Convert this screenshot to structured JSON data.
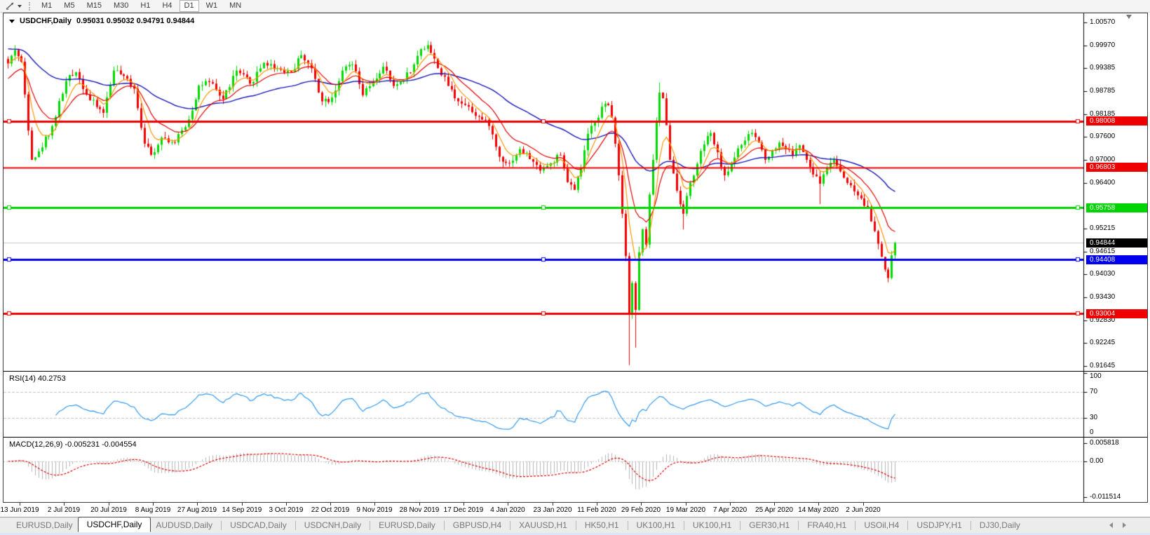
{
  "toolbar": {
    "timeframes": [
      "M1",
      "M5",
      "M15",
      "M30",
      "H1",
      "H4",
      "D1",
      "W1",
      "MN"
    ],
    "active_timeframe": "D1"
  },
  "chart": {
    "symbol": "USDCHF,Daily",
    "ohlc": "0.95031 0.95032 0.94791 0.94844",
    "price_axis_ticks": [
      "1.00570",
      "0.99970",
      "0.99385",
      "0.98785",
      "0.98185",
      "0.97600",
      "0.97000",
      "0.96400",
      "0.95215",
      "0.94615",
      "0.94030",
      "0.93430",
      "0.92830",
      "0.92245",
      "0.91645"
    ],
    "axis_range": {
      "top": 1.0057,
      "bottom": 0.91645
    },
    "hlines": [
      {
        "price": 0.98008,
        "label": "0.98008",
        "color": "#ee0000",
        "thickness": 3,
        "selected": true
      },
      {
        "price": 0.96803,
        "label": "0.96803",
        "color": "#ee0000",
        "thickness": 2,
        "selected": false
      },
      {
        "price": 0.95758,
        "label": "0.95758",
        "color": "#00d400",
        "thickness": 3,
        "selected": true
      },
      {
        "price": 0.94408,
        "label": "0.94408",
        "color": "#0000ee",
        "thickness": 3,
        "selected": true
      },
      {
        "price": 0.93004,
        "label": "0.93004",
        "color": "#ee0000",
        "thickness": 3,
        "selected": true
      }
    ],
    "current_price": {
      "price": 0.94844,
      "label": "0.94844",
      "tag_color": "#000000",
      "line_color": "#c8c8c8"
    },
    "candles": {
      "count": 261,
      "up_color": "#00dc00",
      "down_color": "#f50000",
      "anchors": [
        [
          0,
          0.995
        ],
        [
          2,
          0.9985
        ],
        [
          4,
          0.9955
        ],
        [
          7,
          0.97
        ],
        [
          9,
          0.9722
        ],
        [
          13,
          0.9788
        ],
        [
          17,
          0.9905
        ],
        [
          20,
          0.9928
        ],
        [
          24,
          0.9855
        ],
        [
          28,
          0.9822
        ],
        [
          31,
          0.9932
        ],
        [
          34,
          0.9918
        ],
        [
          37,
          0.9885
        ],
        [
          40,
          0.9742
        ],
        [
          42,
          0.9713
        ],
        [
          45,
          0.9758
        ],
        [
          49,
          0.9745
        ],
        [
          53,
          0.9805
        ],
        [
          56,
          0.9893
        ],
        [
          59,
          0.9902
        ],
        [
          63,
          0.9858
        ],
        [
          67,
          0.9932
        ],
        [
          71,
          0.9898
        ],
        [
          75,
          0.9952
        ],
        [
          79,
          0.9938
        ],
        [
          83,
          0.9928
        ],
        [
          86,
          0.9972
        ],
        [
          89,
          0.9938
        ],
        [
          92,
          0.9852
        ],
        [
          95,
          0.9862
        ],
        [
          98,
          0.9932
        ],
        [
          101,
          0.9948
        ],
        [
          104,
          0.9868
        ],
        [
          107,
          0.9902
        ],
        [
          110,
          0.9942
        ],
        [
          113,
          0.9892
        ],
        [
          116,
          0.9908
        ],
        [
          119,
          0.9948
        ],
        [
          121,
          0.9988
        ],
        [
          123,
          0.9998
        ],
        [
          126,
          0.9938
        ],
        [
          129,
          0.9892
        ],
        [
          132,
          0.9852
        ],
        [
          135,
          0.9838
        ],
        [
          138,
          0.9812
        ],
        [
          141,
          0.9788
        ],
        [
          144,
          0.9708
        ],
        [
          147,
          0.9692
        ],
        [
          150,
          0.9728
        ],
        [
          153,
          0.9702
        ],
        [
          156,
          0.9672
        ],
        [
          159,
          0.9692
        ],
        [
          162,
          0.9712
        ],
        [
          164,
          0.9642
        ],
        [
          166,
          0.9622
        ],
        [
          168,
          0.9678
        ],
        [
          170,
          0.9768
        ],
        [
          172,
          0.9798
        ],
        [
          174,
          0.9838
        ],
        [
          176,
          0.9842
        ],
        [
          177,
          0.981
        ],
        [
          178,
          0.9742
        ],
        [
          179,
          0.966
        ],
        [
          180,
          0.956
        ],
        [
          181,
          0.945
        ],
        [
          182,
          0.93
        ],
        [
          183,
          0.938
        ],
        [
          184,
          0.931
        ],
        [
          185,
          0.946
        ],
        [
          186,
          0.952
        ],
        [
          187,
          0.948
        ],
        [
          188,
          0.961
        ],
        [
          189,
          0.97
        ],
        [
          190,
          0.98
        ],
        [
          191,
          0.9875
        ],
        [
          192,
          0.986
        ],
        [
          193,
          0.979
        ],
        [
          194,
          0.97
        ],
        [
          196,
          0.962
        ],
        [
          198,
          0.956
        ],
        [
          200,
          0.964
        ],
        [
          202,
          0.969
        ],
        [
          204,
          0.974
        ],
        [
          206,
          0.977
        ],
        [
          208,
          0.972
        ],
        [
          210,
          0.966
        ],
        [
          212,
          0.969
        ],
        [
          214,
          0.973
        ],
        [
          216,
          0.975
        ],
        [
          218,
          0.977
        ],
        [
          220,
          0.9745
        ],
        [
          222,
          0.97
        ],
        [
          224,
          0.9725
        ],
        [
          226,
          0.9745
        ],
        [
          228,
          0.9728
        ],
        [
          230,
          0.9712
        ],
        [
          232,
          0.9738
        ],
        [
          234,
          0.97
        ],
        [
          236,
          0.9662
        ],
        [
          238,
          0.9638
        ],
        [
          240,
          0.968
        ],
        [
          242,
          0.97
        ],
        [
          244,
          0.967
        ],
        [
          246,
          0.964
        ],
        [
          248,
          0.9618
        ],
        [
          250,
          0.96
        ],
        [
          252,
          0.9575
        ],
        [
          253,
          0.954
        ],
        [
          254,
          0.9515
        ],
        [
          255,
          0.9482
        ],
        [
          256,
          0.9448
        ],
        [
          257,
          0.9415
        ],
        [
          258,
          0.9393
        ],
        [
          259,
          0.9452
        ],
        [
          260,
          0.94844
        ]
      ],
      "spikes": [
        [
          2,
          "h",
          0.9998
        ],
        [
          182,
          "l",
          0.9167
        ],
        [
          184,
          "l",
          0.9212
        ],
        [
          191,
          "h",
          0.9901
        ],
        [
          198,
          "l",
          0.9519
        ],
        [
          238,
          "l",
          0.9585
        ],
        [
          258,
          "l",
          0.9382
        ]
      ]
    },
    "moving_averages": [
      {
        "name": "fast-ma",
        "period": 6,
        "color": "#ff9500"
      },
      {
        "name": "mid-ma",
        "period": 14,
        "color": "#e00000"
      },
      {
        "name": "slow-ma",
        "period": 50,
        "color": "#1616b4"
      }
    ]
  },
  "rsi": {
    "label": "RSI(14) 40.2753",
    "axis": [
      "100",
      "70",
      "30",
      "0"
    ],
    "levels": [
      70,
      30
    ],
    "line_color": "#3399ee"
  },
  "macd": {
    "label": "MACD(12,26,9) -0.005231 -0.004554",
    "axis": [
      {
        "v": 0.005818,
        "t": "0.005818"
      },
      {
        "v": 0,
        "t": "0.00"
      },
      {
        "v": -0.011514,
        "t": "-0.011514"
      }
    ],
    "bar_color": "#b4b4b4",
    "signal_color": "#dd0000"
  },
  "dates": [
    "13 Jun 2019",
    "2 Jul 2019",
    "20 Jul 2019",
    "8 Aug 2019",
    "27 Aug 2019",
    "14 Sep 2019",
    "3 Oct 2019",
    "22 Oct 2019",
    "9 Nov 2019",
    "28 Nov 2019",
    "17 Dec 2019",
    "4 Jan 2020",
    "23 Jan 2020",
    "11 Feb 2020",
    "29 Feb 2020",
    "19 Mar 2020",
    "7 Apr 2020",
    "25 Apr 2020",
    "14 May 2020",
    "2 Jun 2020"
  ],
  "tabs": {
    "items": [
      "EURUSD,Daily",
      "USDCHF,Daily",
      "AUDUSD,Daily",
      "USDCAD,Daily",
      "USDCNH,Daily",
      "EURUSD,Daily",
      "GBPUSD,H4",
      "XAUUSD,H1",
      "HK50,H1",
      "UK100,H1",
      "UK100,H1",
      "GER30,H1",
      "FRA40,H1",
      "USOil,H4",
      "USDJPY,H1",
      "DJ30,Daily"
    ],
    "active_index": 1
  }
}
